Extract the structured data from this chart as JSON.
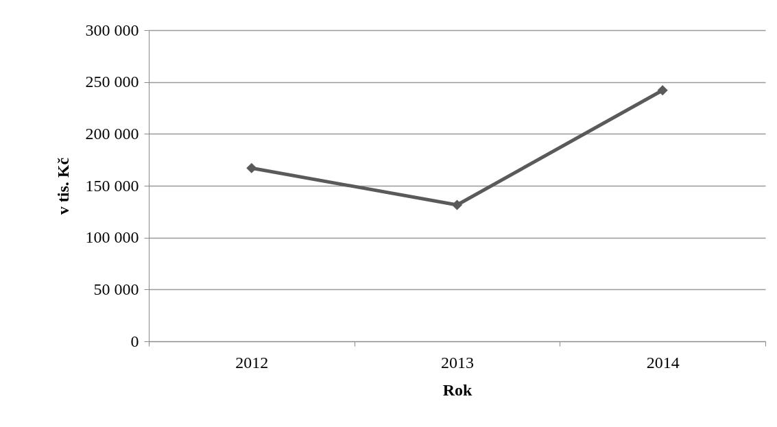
{
  "chart_data": {
    "type": "line",
    "xlabel": "Rok",
    "ylabel": "v tis. Kč",
    "categories": [
      "2012",
      "2013",
      "2014"
    ],
    "series": [
      {
        "color": "#5a5a5a",
        "values": [
          167000,
          131500,
          242000
        ]
      }
    ],
    "ylim": [
      0,
      300000
    ],
    "yticks": [
      {
        "value": 0,
        "label": "0"
      },
      {
        "value": 50000,
        "label": "50 000"
      },
      {
        "value": 100000,
        "label": "100 000"
      },
      {
        "value": 150000,
        "label": "150 000"
      },
      {
        "value": 200000,
        "label": "200 000"
      },
      {
        "value": 250000,
        "label": "250 000"
      },
      {
        "value": 300000,
        "label": "300 000"
      }
    ],
    "grid": "y",
    "marker": "diamond",
    "legend": false
  }
}
